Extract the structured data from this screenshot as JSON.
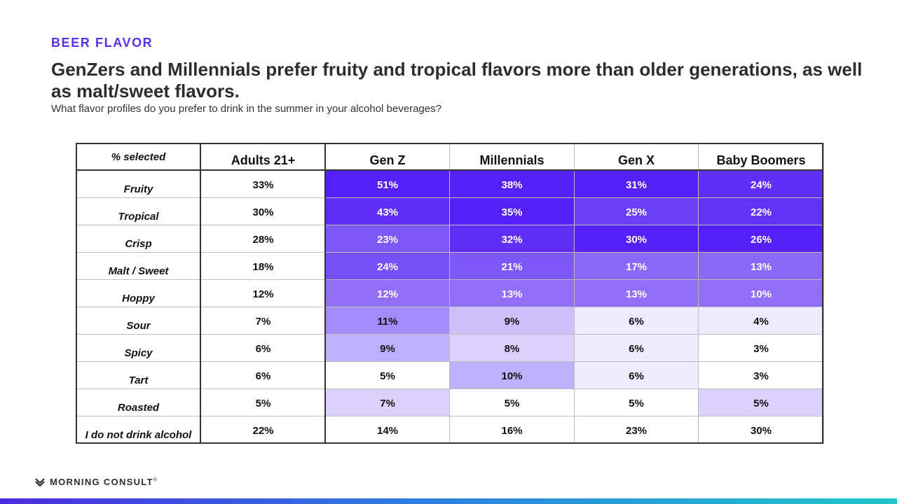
{
  "kicker": "BEER FLAVOR",
  "title": "GenZers and Millennials prefer fruity and tropical flavors more than older generations, as well as malt/sweet flavors.",
  "subtitle": "What flavor profiles do you prefer to drink in the summer in your alcohol beverages?",
  "table": {
    "row_header": "% selected",
    "columns": [
      "Adults 21+",
      "Gen Z",
      "Millennials",
      "Gen X",
      "Baby Boomers"
    ],
    "rows": [
      {
        "label": "Fruity",
        "values": [
          "33%",
          "51%",
          "38%",
          "31%",
          "24%"
        ],
        "colors": [
          "#ffffff",
          "#5420f5",
          "#5420f5",
          "#5420f5",
          "#5f2ff6"
        ]
      },
      {
        "label": "Tropical",
        "values": [
          "30%",
          "43%",
          "35%",
          "25%",
          "22%"
        ],
        "colors": [
          "#ffffff",
          "#5f2ff6",
          "#5420f5",
          "#6c40f6",
          "#6033f6"
        ]
      },
      {
        "label": "Crisp",
        "values": [
          "28%",
          "23%",
          "32%",
          "30%",
          "26%"
        ],
        "colors": [
          "#ffffff",
          "#7e59f7",
          "#5f2ff6",
          "#5420f5",
          "#5420f5"
        ]
      },
      {
        "label": "Malt / Sweet",
        "values": [
          "18%",
          "24%",
          "21%",
          "17%",
          "13%"
        ],
        "colors": [
          "#ffffff",
          "#7450f7",
          "#7e59f7",
          "#8a69f8",
          "#8a69f8"
        ]
      },
      {
        "label": "Hoppy",
        "values": [
          "12%",
          "12%",
          "13%",
          "13%",
          "10%"
        ],
        "colors": [
          "#ffffff",
          "#916ff8",
          "#916ff8",
          "#916ff8",
          "#916ff8"
        ]
      },
      {
        "label": "Sour",
        "values": [
          "7%",
          "11%",
          "9%",
          "6%",
          "4%"
        ],
        "colors": [
          "#ffffff",
          "#a38cf9",
          "#cdbffb",
          "#efebfe",
          "#efebfe"
        ]
      },
      {
        "label": "Spicy",
        "values": [
          "6%",
          "9%",
          "8%",
          "6%",
          "3%"
        ],
        "colors": [
          "#ffffff",
          "#bfb0fb",
          "#dbd1fc",
          "#efebfe",
          "#ffffff"
        ]
      },
      {
        "label": "Tart",
        "values": [
          "6%",
          "5%",
          "10%",
          "6%",
          "3%"
        ],
        "colors": [
          "#ffffff",
          "#ffffff",
          "#bfb0fb",
          "#efebfe",
          "#ffffff"
        ]
      },
      {
        "label": "Roasted",
        "values": [
          "5%",
          "7%",
          "5%",
          "5%",
          "5%"
        ],
        "colors": [
          "#ffffff",
          "#dbd1fc",
          "#ffffff",
          "#ffffff",
          "#dbd1fc"
        ]
      },
      {
        "label": "I do not drink alcohol",
        "values": [
          "22%",
          "14%",
          "16%",
          "23%",
          "30%"
        ],
        "colors": [
          "#ffffff",
          "#ffffff",
          "#ffffff",
          "#ffffff",
          "#ffffff"
        ]
      }
    ]
  },
  "footer": {
    "logo_text": "MORNING CONSULT",
    "logo_mark": "®",
    "logo_icon": "morning-consult-mark-icon"
  },
  "colors": {
    "accent": "#5a2ff0",
    "dark_text": "#2d2d2d"
  }
}
